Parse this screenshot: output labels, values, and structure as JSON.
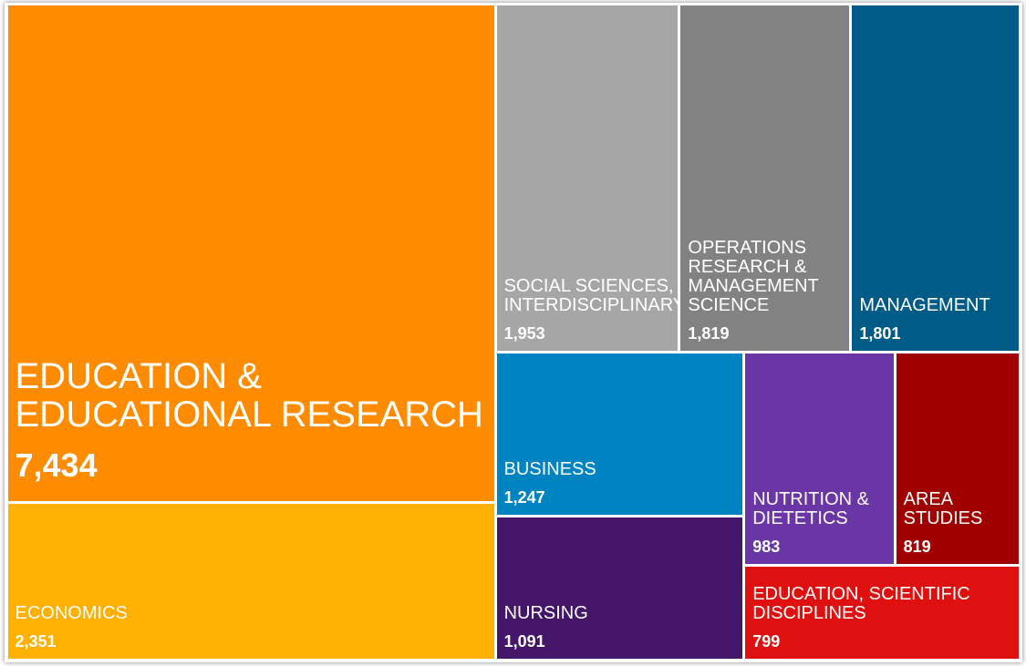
{
  "chart_data": {
    "type": "treemap",
    "categories": [
      "EDUCATION & EDUCATIONAL RESEARCH",
      "ECONOMICS",
      "SOCIAL SCIENCES, INTERDISCIPLINARY",
      "OPERATIONS RESEARCH & MANAGEMENT SCIENCE",
      "MANAGEMENT",
      "BUSINESS",
      "NURSING",
      "NUTRITION & DIETETICS",
      "AREA STUDIES",
      "EDUCATION, SCIENTIFIC DISCIPLINES"
    ],
    "values": [
      7434,
      2351,
      1953,
      1819,
      1801,
      1247,
      1091,
      983,
      819,
      799
    ],
    "value_labels": [
      "7,434",
      "2,351",
      "1,953",
      "1,819",
      "1,801",
      "1,247",
      "1,091",
      "983",
      "819",
      "799"
    ],
    "colors": [
      "#ff8c00",
      "#ffb000",
      "#a6a6a6",
      "#828282",
      "#005b87",
      "#0083c1",
      "#44166a",
      "#6a36a6",
      "#a00000",
      "#df1010"
    ]
  }
}
